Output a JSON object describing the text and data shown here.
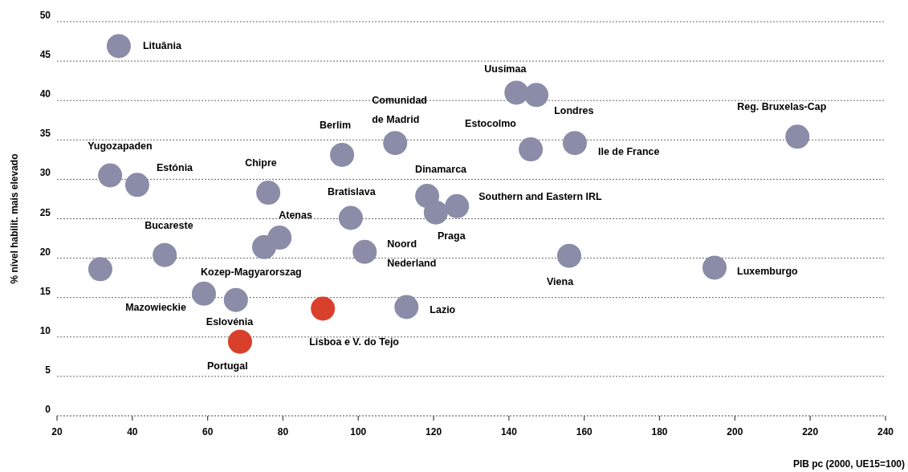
{
  "chart_data": {
    "type": "scatter",
    "xlabel": "PIB pc (2000, UE15=100)",
    "ylabel": "% nível habilit. mais elevado",
    "xlim": [
      20,
      240
    ],
    "xticks": [
      20,
      40,
      60,
      80,
      100,
      120,
      140,
      160,
      180,
      200,
      220,
      240
    ],
    "ylim": [
      0,
      50
    ],
    "yticks": [
      0,
      5,
      10,
      15,
      20,
      25,
      30,
      35,
      40,
      45,
      50
    ],
    "grid": "y",
    "marker": "circle",
    "series": [
      {
        "color": "#8a8ca8",
        "x": [
          36.4,
          34.1,
          41.3,
          48.6,
          31.5,
          59.0,
          67.5,
          76.1,
          75.0,
          79.1,
          95.7,
          109.8,
          98.0,
          101.7,
          118.3,
          120.6,
          126.2,
          142.0,
          147.3,
          145.8,
          157.5,
          216.6,
          156.0,
          194.6,
          112.8
        ],
        "values": [
          46.9,
          30.5,
          29.3,
          20.4,
          18.6,
          15.5,
          14.7,
          28.3,
          21.4,
          22.6,
          33.1,
          34.6,
          25.1,
          20.8,
          27.9,
          25.8,
          26.6,
          41.0,
          40.7,
          33.8,
          34.6,
          35.4,
          20.3,
          18.8,
          13.8
        ]
      },
      {
        "color": "#d9402b",
        "x": [
          90.6,
          68.6
        ],
        "values": [
          13.6,
          9.4
        ]
      }
    ],
    "annotations": [
      {
        "text": "Lituânia",
        "x": 36.4,
        "y": 46.9
      },
      {
        "text": "Yugozapaden",
        "x": 34.1,
        "y": 30.5
      },
      {
        "text": "Estónia",
        "x": 41.3,
        "y": 29.3
      },
      {
        "text": "Bucareste",
        "x": 48.6,
        "y": 20.4
      },
      {
        "text": "Mazowieckie",
        "x": 59.0,
        "y": 15.5
      },
      {
        "text": "Kozep-Magyarorszag",
        "x": 75.0,
        "y": 21.4
      },
      {
        "text": "Eslovénia",
        "x": 67.5,
        "y": 14.7
      },
      {
        "text": "Chipre",
        "x": 76.1,
        "y": 28.3
      },
      {
        "text": "Atenas",
        "x": 79.1,
        "y": 22.6
      },
      {
        "text": "Berlim",
        "x": 95.7,
        "y": 33.1
      },
      {
        "text": "Comunidad de Madrid",
        "x": 109.8,
        "y": 34.6
      },
      {
        "text": "Bratislava",
        "x": 98.0,
        "y": 25.1
      },
      {
        "text": "Noord Nederland",
        "x": 101.7,
        "y": 20.8
      },
      {
        "text": "Dinamarca",
        "x": 118.3,
        "y": 27.9
      },
      {
        "text": "Praga",
        "x": 120.6,
        "y": 25.8
      },
      {
        "text": "Southern and Eastern IRL",
        "x": 126.2,
        "y": 26.6
      },
      {
        "text": "Uusimaa",
        "x": 142.0,
        "y": 41.0
      },
      {
        "text": "Londres",
        "x": 147.3,
        "y": 40.7
      },
      {
        "text": "Estocolmo",
        "x": 145.8,
        "y": 33.8
      },
      {
        "text": "Ile de France",
        "x": 157.5,
        "y": 34.6
      },
      {
        "text": "Reg. Bruxelas-Cap",
        "x": 216.6,
        "y": 35.4
      },
      {
        "text": "Viena",
        "x": 156.0,
        "y": 20.3
      },
      {
        "text": "Luxemburgo",
        "x": 194.6,
        "y": 18.8
      },
      {
        "text": "Lazio",
        "x": 112.8,
        "y": 13.8
      },
      {
        "text": "Lisboa e V. do Tejo",
        "x": 90.6,
        "y": 13.6
      },
      {
        "text": "Portugal",
        "x": 68.6,
        "y": 9.4
      }
    ]
  }
}
